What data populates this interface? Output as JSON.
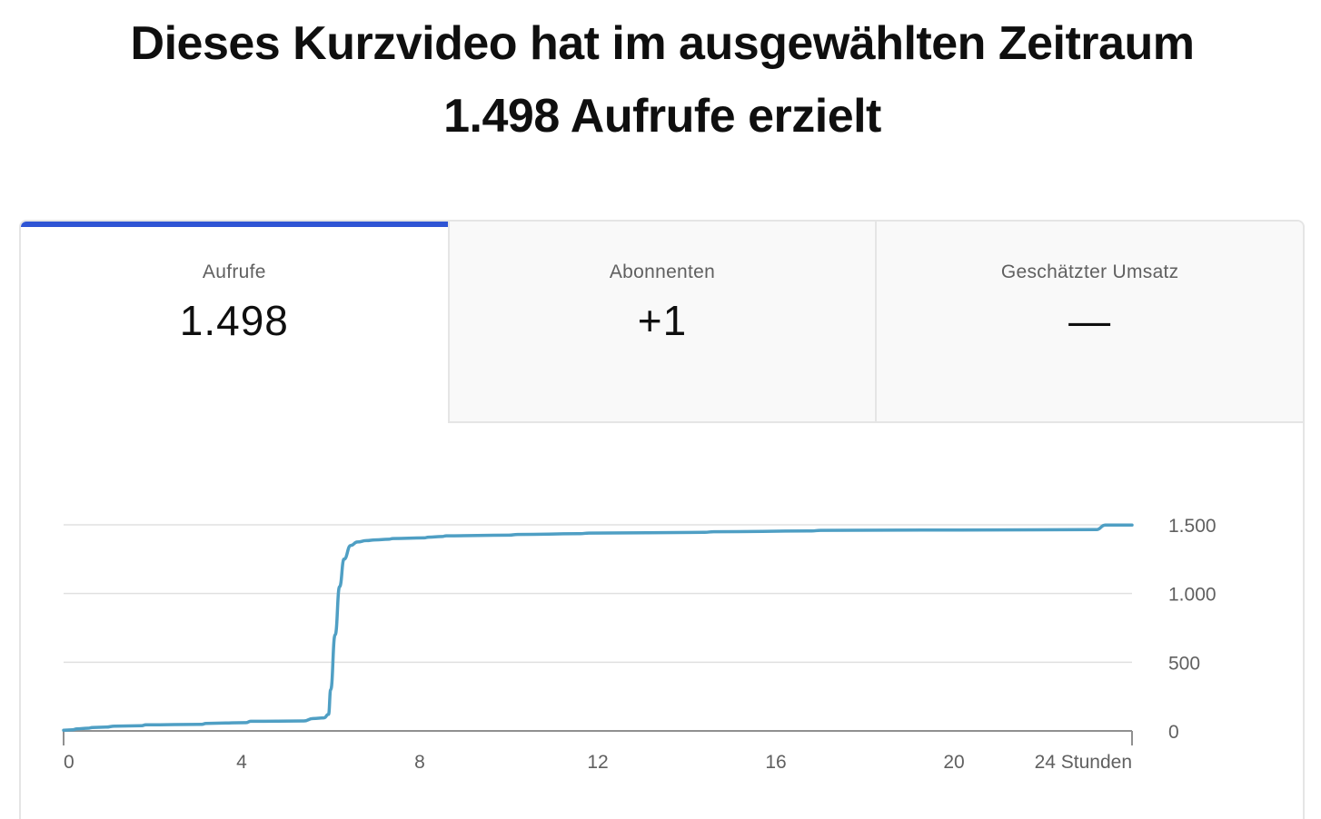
{
  "headline": {
    "line1": "Dieses Kurzvideo hat im ausgewählten Zeitraum",
    "line2": "1.498 Aufrufe erzielt"
  },
  "tabs": [
    {
      "label": "Aufrufe",
      "value": "1.498",
      "selected": true
    },
    {
      "label": "Abonnenten",
      "value": "+1",
      "selected": false
    },
    {
      "label": "Geschätzter Umsatz",
      "value": "—",
      "selected": false
    }
  ],
  "colors": {
    "accent": "#2f55d4",
    "line": "#4f9fc4",
    "grid": "#e0e0e0",
    "axis": "#909090"
  },
  "chart_data": {
    "type": "line",
    "xlabel": "",
    "ylabel": "",
    "x_unit_label": "24 Stunden",
    "xlim": [
      0,
      24
    ],
    "ylim": [
      0,
      1500
    ],
    "x_ticks": [
      0,
      4,
      8,
      12,
      16,
      20
    ],
    "x_tick_labels": [
      "0",
      "4",
      "8",
      "12",
      "16",
      "20"
    ],
    "y_ticks": [
      0,
      500,
      1000,
      1500
    ],
    "y_tick_labels": [
      "0",
      "500",
      "1.000",
      "1.500"
    ],
    "grid": true,
    "series": [
      {
        "values": [
          [
            0,
            5
          ],
          [
            0.2,
            8
          ],
          [
            0.3,
            15
          ],
          [
            0.55,
            20
          ],
          [
            0.65,
            25
          ],
          [
            0.95,
            28
          ],
          [
            1.15,
            35
          ],
          [
            1.75,
            38
          ],
          [
            1.85,
            45
          ],
          [
            3.1,
            48
          ],
          [
            3.2,
            55
          ],
          [
            4.1,
            60
          ],
          [
            4.2,
            70
          ],
          [
            5.4,
            73
          ],
          [
            5.6,
            90
          ],
          [
            5.85,
            95
          ],
          [
            5.95,
            120
          ],
          [
            6.0,
            300
          ],
          [
            6.1,
            700
          ],
          [
            6.2,
            1050
          ],
          [
            6.3,
            1250
          ],
          [
            6.45,
            1350
          ],
          [
            6.6,
            1375
          ],
          [
            6.8,
            1385
          ],
          [
            7.0,
            1390
          ],
          [
            7.3,
            1395
          ],
          [
            7.4,
            1400
          ],
          [
            8.1,
            1405
          ],
          [
            8.2,
            1410
          ],
          [
            8.5,
            1415
          ],
          [
            8.6,
            1420
          ],
          [
            10.0,
            1425
          ],
          [
            10.2,
            1430
          ],
          [
            11.6,
            1435
          ],
          [
            11.8,
            1440
          ],
          [
            14.4,
            1445
          ],
          [
            14.6,
            1450
          ],
          [
            16.8,
            1455
          ],
          [
            17.0,
            1460
          ],
          [
            23.2,
            1465
          ],
          [
            23.4,
            1498
          ],
          [
            24,
            1498
          ]
        ]
      }
    ]
  }
}
